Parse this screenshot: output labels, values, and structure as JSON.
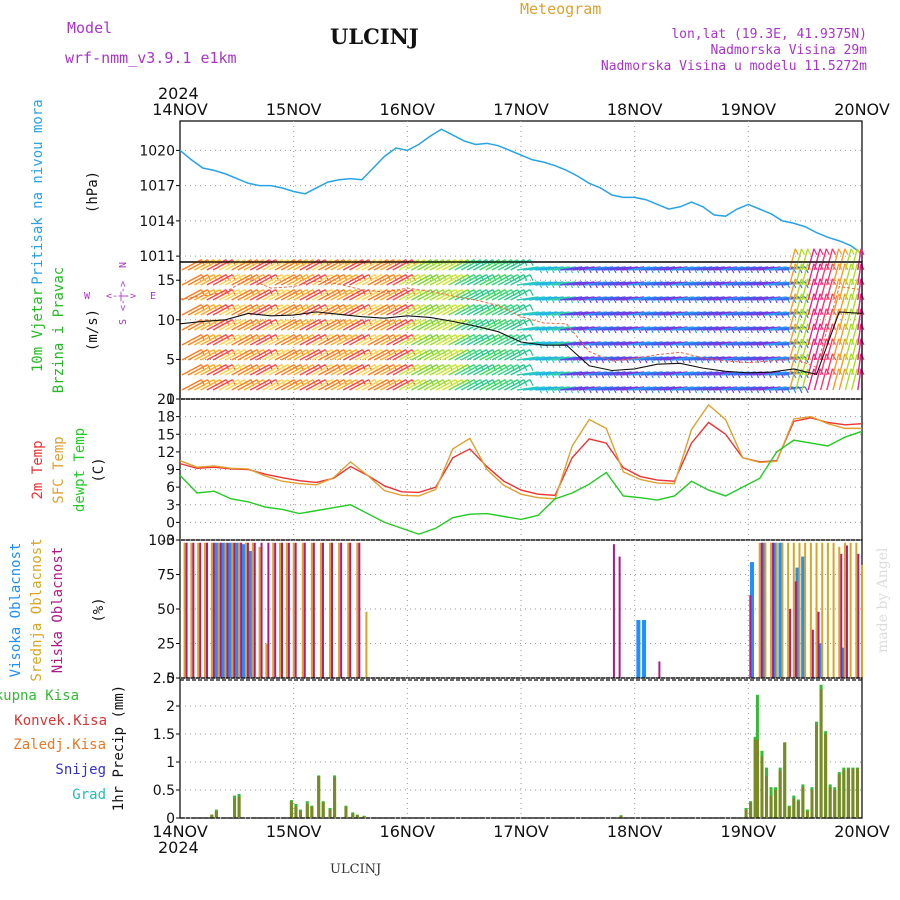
{
  "header": {
    "model_label": "Model",
    "model_name": "wrf-nmm_v3.9.1 e1km",
    "station": "ULCINJ",
    "meteogram": "Meteogram",
    "lonlat": "lon,lat (19.3E, 41.9375N)",
    "altitude": "Nadmorska Visina 29m",
    "model_altitude": "Nadmorska Visina u modelu 11.5272m",
    "footer_station": "ULCINJ",
    "credit": "made by Angel"
  },
  "time_axis": {
    "year_top": "2024",
    "year_bottom": "2024",
    "ticks": [
      "14NOV",
      "15NOV",
      "16NOV",
      "17NOV",
      "18NOV",
      "19NOV",
      "20NOV"
    ]
  },
  "colors": {
    "pressure": "#29a3e6",
    "wind_label": "#22bb22",
    "temp2m": "#ee3333",
    "sfc": "#e0a030",
    "dewpt": "#22cc22",
    "high_cloud": "#1e90ff",
    "mid_cloud": "#daa520",
    "low_cloud": "#b0188a",
    "total_precip": "#33bb33",
    "conv_precip": "#dd3333",
    "grid_precip": "#ee7722",
    "snow": "#3333cc",
    "graupel": "#22bbbb",
    "magenta": "#aa33cc"
  },
  "chart_data": [
    {
      "type": "line",
      "panel": "pressure",
      "ylabel": "Pritisak na nivou mora",
      "unit": "(hPa)",
      "ylim": [
        1010.5,
        1022.5
      ],
      "yticks": [
        "1011",
        "1014",
        "1017",
        "1020"
      ],
      "grid": true,
      "x": [
        0,
        0.1,
        0.2,
        0.3,
        0.4,
        0.5,
        0.6,
        0.7,
        0.8,
        0.9,
        1.0,
        1.1,
        1.2,
        1.3,
        1.4,
        1.5,
        1.6,
        1.7,
        1.8,
        1.9,
        2.0,
        2.1,
        2.2,
        2.3,
        2.4,
        2.5,
        2.6,
        2.7,
        2.8,
        2.9,
        3.0,
        3.1,
        3.2,
        3.3,
        3.4,
        3.5,
        3.6,
        3.7,
        3.8,
        3.9,
        4.0,
        4.1,
        4.2,
        4.3,
        4.4,
        4.5,
        4.6,
        4.7,
        4.8,
        4.9,
        5.0,
        5.1,
        5.2,
        5.3,
        5.4,
        5.5,
        5.6,
        5.7,
        5.8,
        5.9,
        6.0
      ],
      "series": [
        {
          "values": [
            1020.0,
            1019.2,
            1018.5,
            1018.3,
            1018.0,
            1017.6,
            1017.2,
            1017.0,
            1017.0,
            1016.8,
            1016.5,
            1016.3,
            1016.8,
            1017.3,
            1017.5,
            1017.6,
            1017.5,
            1018.5,
            1019.5,
            1020.2,
            1020.0,
            1020.5,
            1021.2,
            1021.8,
            1021.3,
            1020.8,
            1020.5,
            1020.6,
            1020.4,
            1020.0,
            1019.6,
            1019.2,
            1019.0,
            1018.7,
            1018.3,
            1017.8,
            1017.2,
            1016.8,
            1016.2,
            1016.0,
            1016.0,
            1015.8,
            1015.4,
            1015.0,
            1015.2,
            1015.6,
            1015.2,
            1014.5,
            1014.4,
            1015.0,
            1015.4,
            1015.0,
            1014.6,
            1014.0,
            1013.8,
            1013.5,
            1013.0,
            1012.6,
            1012.3,
            1011.9,
            1011.2
          ]
        }
      ]
    },
    {
      "type": "line",
      "panel": "wind",
      "ylabel": [
        "10m Vjetar",
        "Brzina i Pravac"
      ],
      "unit": "(m/s)",
      "compass": {
        "n": "N",
        "s": "S",
        "e": "E",
        "w": "W",
        "arrow": "<-|->"
      },
      "ylim": [
        0,
        17.3
      ],
      "yticks": [
        "0",
        "5",
        "10",
        "15"
      ],
      "grid": true,
      "x": [
        0,
        0.2,
        0.4,
        0.6,
        0.8,
        1.0,
        1.2,
        1.4,
        1.6,
        1.8,
        2.0,
        2.2,
        2.4,
        2.6,
        2.8,
        3.0,
        3.2,
        3.4,
        3.6,
        3.8,
        4.0,
        4.2,
        4.4,
        4.6,
        4.8,
        5.0,
        5.2,
        5.4,
        5.6,
        5.8,
        6.0
      ],
      "series": [
        {
          "values": [
            9.5,
            9.8,
            10.0,
            10.8,
            10.5,
            10.6,
            11.0,
            10.7,
            10.4,
            10.2,
            10.5,
            10.3,
            9.8,
            9.2,
            8.5,
            7.2,
            6.8,
            6.8,
            4.2,
            3.6,
            3.8,
            4.4,
            4.5,
            3.9,
            3.5,
            3.3,
            3.4,
            3.8,
            3.1,
            11.0,
            10.8
          ]
        },
        {
          "values": [
            12.6,
            13.0,
            13.5,
            15.2,
            14.0,
            14.2,
            14.9,
            14.5,
            13.8,
            13.5,
            14.0,
            13.6,
            13.0,
            12.5,
            11.8,
            10.4,
            9.6,
            9.5,
            6.0,
            4.8,
            5.1,
            5.6,
            5.9,
            5.2,
            4.8,
            4.6,
            4.8,
            5.1,
            4.0,
            14.2,
            13.8
          ]
        }
      ]
    },
    {
      "type": "line",
      "panel": "temperature",
      "ylabel": [
        "2m Temp",
        "SFC Temp",
        "dewpt Temp"
      ],
      "unit": "(C)",
      "ylim": [
        -3,
        21
      ],
      "yticks": [
        "-3",
        "0",
        "3",
        "6",
        "9",
        "12",
        "15",
        "18",
        "21"
      ],
      "grid": true,
      "x": [
        0,
        0.15,
        0.3,
        0.45,
        0.6,
        0.75,
        0.9,
        1.05,
        1.2,
        1.35,
        1.5,
        1.65,
        1.8,
        1.95,
        2.1,
        2.25,
        2.4,
        2.55,
        2.7,
        2.85,
        3.0,
        3.15,
        3.3,
        3.45,
        3.6,
        3.75,
        3.9,
        4.05,
        4.2,
        4.35,
        4.5,
        4.65,
        4.8,
        4.95,
        5.1,
        5.25,
        5.4,
        5.55,
        5.7,
        5.85,
        6.0
      ],
      "series": [
        {
          "name": "2m Temp",
          "values": [
            10.0,
            9.2,
            9.4,
            9.1,
            9.0,
            8.2,
            7.6,
            7.1,
            6.8,
            7.5,
            9.5,
            8.0,
            6.2,
            5.2,
            5.1,
            6.0,
            11.0,
            12.5,
            9.5,
            7.0,
            5.5,
            4.8,
            4.6,
            11.0,
            14.2,
            13.5,
            9.3,
            7.8,
            7.2,
            7.0,
            13.5,
            17.0,
            15.0,
            11.0,
            10.3,
            10.5,
            17.2,
            17.8,
            17.0,
            16.6,
            16.8
          ]
        },
        {
          "name": "SFC Temp",
          "values": [
            10.5,
            9.4,
            9.6,
            9.2,
            9.1,
            7.9,
            7.0,
            6.6,
            6.4,
            7.6,
            10.3,
            8.0,
            5.4,
            4.6,
            4.5,
            5.6,
            12.5,
            14.3,
            9.0,
            6.3,
            4.8,
            4.2,
            4.0,
            13.0,
            17.5,
            16.0,
            8.6,
            7.3,
            6.7,
            6.6,
            15.8,
            20.0,
            17.5,
            11.0,
            10.2,
            10.4,
            17.6,
            18.0,
            16.8,
            16.0,
            16.0
          ]
        },
        {
          "name": "dewpt Temp",
          "values": [
            8.0,
            5.0,
            5.3,
            4.0,
            3.5,
            2.6,
            2.2,
            1.5,
            2.0,
            2.5,
            3.0,
            1.5,
            0.0,
            -1.0,
            -2.0,
            -1.0,
            0.8,
            1.4,
            1.5,
            1.0,
            0.5,
            1.2,
            4.0,
            5.0,
            6.5,
            8.5,
            4.5,
            4.2,
            3.8,
            4.5,
            7.0,
            5.5,
            4.5,
            6.0,
            7.5,
            12.0,
            14.0,
            13.5,
            13.0,
            14.5,
            15.5
          ]
        }
      ]
    },
    {
      "type": "bar",
      "panel": "clouds",
      "ylabel": [
        "Visoka Oblacnost",
        "Srednja Oblacnost",
        "Niska Oblacnost"
      ],
      "unit": "(%)",
      "ylim": [
        0,
        100
      ],
      "yticks": [
        "0",
        "25",
        "50",
        "75",
        "100"
      ],
      "grid": true,
      "x": [
        0.04,
        0.1,
        0.16,
        0.22,
        0.28,
        0.34,
        0.4,
        0.46,
        0.52,
        0.58,
        0.64,
        0.7,
        0.76,
        0.82,
        0.88,
        0.94,
        1.0,
        1.08,
        1.16,
        1.24,
        1.32,
        1.4,
        1.48,
        1.56,
        1.64,
        3.8,
        3.85,
        4.05,
        4.1,
        4.2,
        5.0,
        5.05,
        5.1,
        5.15,
        5.2,
        5.25,
        5.3,
        5.35,
        5.4,
        5.45,
        5.5,
        5.55,
        5.6,
        5.65,
        5.7,
        5.75,
        5.8,
        5.85,
        5.9,
        5.95,
        6.0
      ],
      "series": [
        {
          "name": "Visoka Oblacnost",
          "values": [
            0,
            0,
            0,
            0,
            0,
            98,
            98,
            98,
            98,
            97,
            92,
            0,
            0,
            0,
            0,
            0,
            0,
            0,
            0,
            0,
            0,
            0,
            0,
            0,
            0,
            0,
            0,
            42,
            42,
            0,
            0,
            84,
            0,
            98,
            0,
            98,
            98,
            0,
            0,
            80,
            88,
            0,
            0,
            25,
            0,
            0,
            0,
            22,
            0,
            0,
            0
          ]
        },
        {
          "name": "Srednja Oblacnost",
          "values": [
            98,
            98,
            98,
            98,
            98,
            98,
            98,
            98,
            98,
            98,
            98,
            95,
            25,
            98,
            98,
            98,
            98,
            98,
            98,
            98,
            98,
            98,
            98,
            98,
            48,
            0,
            0,
            0,
            0,
            0,
            0,
            0,
            98,
            98,
            98,
            98,
            98,
            98,
            98,
            98,
            98,
            98,
            98,
            98,
            98,
            98,
            95,
            98,
            98,
            98,
            82
          ]
        },
        {
          "name": "Niska Oblacnost",
          "values": [
            98,
            98,
            98,
            98,
            98,
            98,
            98,
            98,
            98,
            98,
            98,
            98,
            98,
            98,
            98,
            98,
            98,
            98,
            98,
            98,
            98,
            98,
            98,
            98,
            0,
            97,
            88,
            0,
            0,
            12,
            60,
            0,
            98,
            0,
            98,
            0,
            0,
            50,
            70,
            0,
            0,
            35,
            48,
            0,
            0,
            0,
            90,
            96,
            0,
            90,
            0
          ]
        }
      ]
    },
    {
      "type": "bar",
      "panel": "precip",
      "ylabel": "1hr Precip (mm)",
      "legend": [
        "Ukupna Kisa",
        "Konvek.Kisa",
        "Zaledj.Kisa",
        "Snijeg",
        "Grad"
      ],
      "ylim": [
        0,
        2.5
      ],
      "yticks": [
        "0",
        "0.5",
        "1",
        "1.5",
        "2",
        "2.5"
      ],
      "grid": true,
      "x": [
        0.28,
        0.32,
        0.48,
        0.52,
        0.98,
        1.02,
        1.06,
        1.12,
        1.16,
        1.22,
        1.26,
        1.32,
        1.36,
        1.46,
        1.52,
        1.56,
        1.62,
        3.88,
        4.98,
        5.02,
        5.06,
        5.08,
        5.12,
        5.16,
        5.2,
        5.24,
        5.28,
        5.32,
        5.36,
        5.4,
        5.44,
        5.48,
        5.52,
        5.56,
        5.6,
        5.64,
        5.68,
        5.72,
        5.76,
        5.8,
        5.84,
        5.88,
        5.92,
        5.96
      ],
      "series": [
        {
          "name": "Ukupna Kisa",
          "values": [
            0.06,
            0.15,
            0.4,
            0.43,
            0.32,
            0.25,
            0.15,
            0.3,
            0.22,
            0.76,
            0.3,
            0.18,
            0.76,
            0.22,
            0.1,
            0.06,
            0.04,
            0.05,
            0.18,
            0.3,
            1.45,
            2.2,
            1.2,
            0.9,
            0.55,
            0.55,
            0.9,
            1.35,
            0.22,
            0.4,
            0.33,
            0.6,
            0.15,
            0.55,
            1.72,
            2.38,
            1.55,
            0.6,
            0.55,
            0.82,
            0.9,
            0.9,
            0.9,
            0.9
          ]
        },
        {
          "name": "Konvek.Kisa",
          "values": [
            0.0,
            0.0,
            0.0,
            0.0,
            0.0,
            0.0,
            0.0,
            0.0,
            0.0,
            0.0,
            0.0,
            0.0,
            0.0,
            0.0,
            0.0,
            0.0,
            0.0,
            0.0,
            0.0,
            0.0,
            0.0,
            0.0,
            0.0,
            0.0,
            0.0,
            0.0,
            0.0,
            0.0,
            0.0,
            0.0,
            0.0,
            0.0,
            0.0,
            0.0,
            0.0,
            0.0,
            0.0,
            0.0,
            0.0,
            0.0,
            0.0,
            0.0,
            0.0,
            0.0
          ]
        },
        {
          "name": "Zaledj.Kisa",
          "values": [
            0.06,
            0.12,
            0.35,
            0.38,
            0.3,
            0.2,
            0.12,
            0.25,
            0.2,
            0.75,
            0.28,
            0.15,
            0.72,
            0.2,
            0.08,
            0.05,
            0.03,
            0.04,
            0.15,
            0.28,
            1.4,
            1.4,
            1.1,
            0.75,
            0.4,
            0.5,
            0.85,
            1.35,
            0.2,
            0.35,
            0.3,
            0.55,
            0.12,
            0.5,
            1.65,
            2.3,
            1.5,
            0.55,
            0.5,
            0.78,
            0.85,
            0.88,
            0.88,
            0.88
          ]
        }
      ]
    }
  ]
}
